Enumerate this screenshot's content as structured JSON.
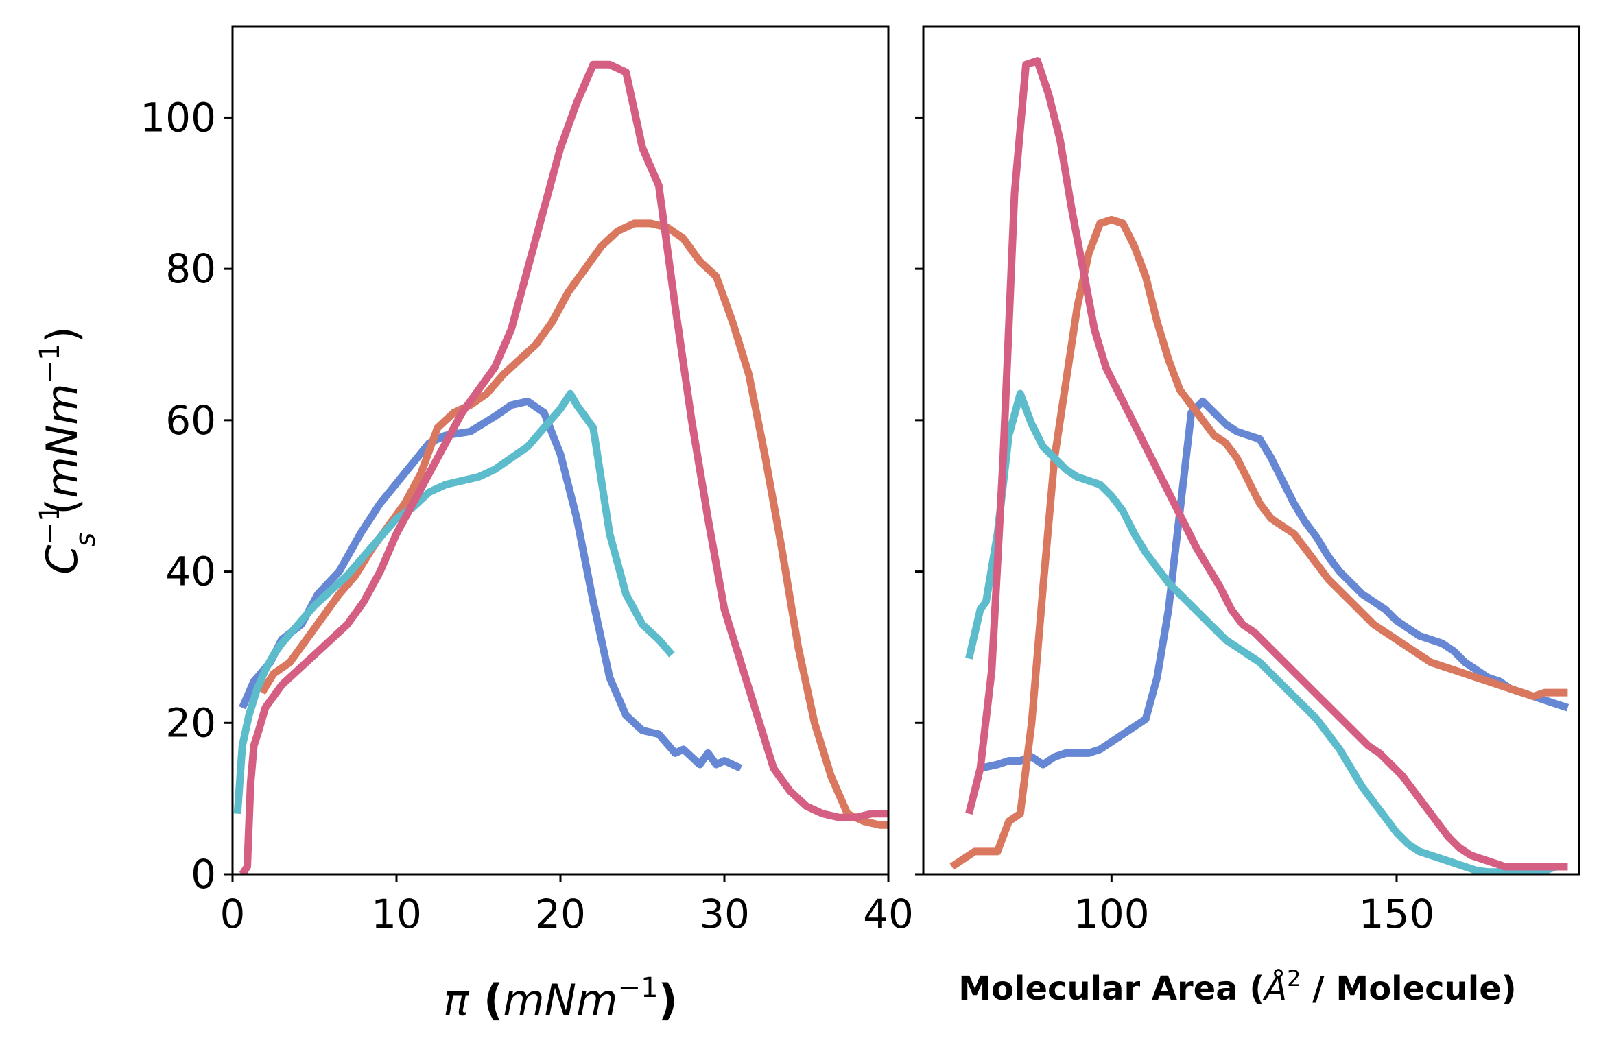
{
  "chart_data": [
    {
      "type": "line",
      "title": "",
      "xlabel": "π (mNm⁻¹)",
      "ylabel": "Cₛ⁻¹(mNm⁻¹)",
      "xlim": [
        0,
        40
      ],
      "ylim": [
        0,
        112
      ],
      "xticks": [
        0,
        10,
        20,
        30,
        40
      ],
      "yticks": [
        0,
        20,
        40,
        60,
        80,
        100
      ],
      "grid": false,
      "series": [
        {
          "color": "#6688d4",
          "x": [
            0.6,
            1.3,
            2.3,
            3.0,
            4.2,
            5.2,
            6.5,
            7.8,
            9.0,
            10.5,
            12.0,
            13.0,
            14.5,
            16.0,
            17.0,
            18.0,
            19.0,
            20.0,
            21.0,
            22.0,
            23.0,
            24.0,
            25.0,
            26.0,
            27.0,
            27.5,
            28.5,
            29.0,
            29.5,
            30.0,
            31.0
          ],
          "y": [
            22,
            25.5,
            28,
            31,
            33,
            37,
            40,
            45,
            49,
            53,
            57,
            58,
            58.5,
            60.5,
            62,
            62.5,
            61,
            55.5,
            47,
            36,
            26,
            21,
            19,
            18.5,
            16,
            16.5,
            14.5,
            16,
            14.5,
            15,
            14
          ]
        },
        {
          "color": "#d9785f",
          "x": [
            1.8,
            2.5,
            3.5,
            4.5,
            5.5,
            6.5,
            7.5,
            8.5,
            9.5,
            10.5,
            11.5,
            12.5,
            13.5,
            14.5,
            15.5,
            16.5,
            17.5,
            18.5,
            19.5,
            20.5,
            21.5,
            22.5,
            23.5,
            24.5,
            25.5,
            26.5,
            27.5,
            28.5,
            29.5,
            30.5,
            31.5,
            32.5,
            33.5,
            34.5,
            35.5,
            36.5,
            37.5,
            38.5,
            39.5,
            40.0
          ],
          "y": [
            24,
            26.5,
            28,
            31,
            34,
            37,
            39.5,
            43,
            46,
            49,
            53,
            59,
            61,
            62,
            63.5,
            66,
            68,
            70,
            73,
            77,
            80,
            83,
            85,
            86,
            86,
            85.5,
            84,
            81,
            79,
            73,
            66,
            55,
            43,
            30,
            20,
            13,
            8,
            7,
            6.5,
            6.5
          ]
        },
        {
          "color": "#5cbccc",
          "x": [
            0.3,
            0.6,
            1.0,
            1.5,
            2.0,
            2.5,
            3.0,
            4.0,
            5.0,
            6.0,
            7.0,
            8.0,
            9.0,
            10.0,
            11.0,
            12.0,
            13.0,
            14.0,
            15.0,
            16.0,
            17.0,
            18.0,
            19.0,
            20.0,
            20.6,
            21.0,
            22.0,
            23.0,
            24.0,
            25.0,
            26.0,
            26.8
          ],
          "y": [
            8,
            17,
            21,
            24.5,
            27,
            29,
            30.5,
            33,
            35.5,
            37.5,
            39.5,
            42,
            44.5,
            47,
            48.5,
            50.5,
            51.5,
            52,
            52.5,
            53.5,
            55,
            56.5,
            59,
            61.5,
            63.5,
            62,
            59,
            45,
            37,
            33,
            31,
            29
          ]
        },
        {
          "color": "#d45f82",
          "x": [
            0.6,
            0.9,
            1.1,
            1.3,
            1.6,
            2.0,
            3.0,
            4.0,
            5.0,
            6.0,
            7.0,
            8.0,
            9.0,
            10.0,
            11.0,
            12.0,
            13.0,
            14.0,
            15.0,
            16.0,
            17.0,
            18.0,
            19.0,
            20.0,
            21.0,
            22.0,
            23.0,
            24.0,
            25.0,
            26.0,
            27.0,
            28.0,
            29.0,
            30.0,
            31.0,
            32.0,
            33.0,
            34.0,
            35.0,
            36.0,
            37.0,
            38.0,
            39.0,
            40.0
          ],
          "y": [
            0,
            1,
            12,
            17,
            19,
            22,
            25,
            27,
            29,
            31,
            33,
            36,
            40,
            45,
            49,
            53,
            57,
            61,
            64,
            67,
            72,
            80,
            88,
            96,
            102,
            107,
            107,
            106,
            96,
            91,
            75,
            60,
            47,
            35,
            28,
            21,
            14,
            11,
            9,
            8,
            7.5,
            7.5,
            8,
            8
          ]
        }
      ]
    },
    {
      "type": "line",
      "title": "",
      "xlabel": "Molecular Area (Å² / Molecule)",
      "ylabel": "",
      "xlim": [
        67,
        182
      ],
      "ylim": [
        0,
        112
      ],
      "xticks": [
        100,
        150
      ],
      "yticks": [
        0,
        20,
        40,
        60,
        80,
        100
      ],
      "grid": false,
      "series": [
        {
          "color": "#6688d4",
          "x": [
            77,
            80,
            82,
            84,
            86,
            88,
            90,
            92,
            94,
            96,
            98,
            100,
            102,
            104,
            106,
            108,
            110,
            112,
            114,
            116,
            118,
            120,
            122,
            124,
            126,
            128,
            130,
            132,
            134,
            136,
            138,
            140,
            142,
            144,
            146,
            148,
            150,
            152,
            154,
            156,
            158,
            160,
            162,
            164,
            166,
            168,
            170,
            172,
            174,
            176,
            178,
            180
          ],
          "y": [
            14,
            14.5,
            15,
            15,
            15.5,
            14.5,
            15.5,
            16,
            16,
            16,
            16.5,
            17.5,
            18.5,
            19.5,
            20.5,
            26,
            35,
            48,
            61,
            62.5,
            61,
            59.5,
            58.5,
            58,
            57.5,
            55,
            52,
            49,
            46.5,
            44.5,
            42,
            40,
            38.5,
            37,
            36,
            35,
            33.5,
            32.5,
            31.5,
            31,
            30.5,
            29.5,
            28,
            27,
            26,
            25.5,
            24.5,
            24,
            23.5,
            23,
            22.5,
            22
          ]
        },
        {
          "color": "#d9785f",
          "x": [
            72,
            74,
            76,
            78,
            80,
            82,
            84,
            86,
            88,
            90,
            92,
            94,
            96,
            98,
            100,
            102,
            104,
            106,
            108,
            110,
            112,
            114,
            116,
            118,
            120,
            122,
            124,
            126,
            128,
            130,
            132,
            134,
            136,
            138,
            140,
            142,
            144,
            146,
            148,
            150,
            152,
            154,
            156,
            158,
            160,
            162,
            164,
            166,
            168,
            170,
            172,
            174,
            176,
            178,
            180
          ],
          "y": [
            1,
            2,
            3,
            3,
            3,
            7,
            8,
            20,
            38,
            55,
            65,
            75,
            82,
            86,
            86.5,
            86,
            83,
            79,
            73,
            68,
            64,
            62,
            60,
            58,
            57,
            55,
            52,
            49,
            47,
            46,
            45,
            43,
            41,
            39,
            37.5,
            36,
            34.5,
            33,
            32,
            31,
            30,
            29,
            28,
            27.5,
            27,
            26.5,
            26,
            25.5,
            25,
            24.5,
            24,
            23.5,
            24,
            24,
            24
          ]
        },
        {
          "color": "#5cbccc",
          "x": [
            75,
            77,
            78,
            80,
            82,
            84,
            86,
            88,
            90,
            92,
            94,
            96,
            98,
            100,
            102,
            104,
            106,
            108,
            110,
            112,
            114,
            116,
            118,
            120,
            122,
            124,
            126,
            128,
            130,
            132,
            134,
            136,
            138,
            140,
            142,
            144,
            146,
            148,
            150,
            152,
            154,
            156,
            158,
            160,
            162,
            164,
            166,
            168,
            170,
            172,
            174,
            176,
            178,
            180
          ],
          "y": [
            28.5,
            35,
            36,
            45,
            58,
            63.5,
            59.5,
            56.5,
            55,
            53.5,
            52.5,
            52,
            51.5,
            50,
            48,
            45,
            42.5,
            40.5,
            38.5,
            37,
            35.5,
            34,
            32.5,
            31,
            30,
            29,
            28,
            26.5,
            25,
            23.5,
            22,
            20.5,
            18.5,
            16.5,
            14,
            11.5,
            9.5,
            7.5,
            5.5,
            4,
            3,
            2.5,
            2,
            1.5,
            1,
            0.5,
            0.3,
            0.3,
            0.3,
            0.3,
            0.3,
            0.5,
            1,
            1
          ]
        },
        {
          "color": "#d45f82",
          "x": [
            75,
            77,
            79,
            81,
            83,
            85,
            87,
            89,
            91,
            93,
            95,
            97,
            99,
            101,
            103,
            105,
            107,
            109,
            111,
            113,
            115,
            117,
            119,
            121,
            123,
            125,
            127,
            129,
            131,
            133,
            135,
            137,
            139,
            141,
            143,
            145,
            147,
            149,
            151,
            153,
            155,
            157,
            159,
            161,
            163,
            165,
            167,
            169,
            171,
            173,
            175,
            177,
            179,
            180
          ],
          "y": [
            8,
            14,
            27,
            55,
            90,
            107,
            107.5,
            103,
            97,
            88,
            80,
            72,
            67,
            64,
            61,
            58,
            55,
            52,
            49,
            46,
            43,
            40.5,
            38,
            35,
            33,
            32,
            30.5,
            29,
            27.5,
            26,
            24.5,
            23,
            21.5,
            20,
            18.5,
            17,
            16,
            14.5,
            13,
            11,
            9,
            7,
            5,
            3.5,
            2.5,
            2,
            1.5,
            1,
            1,
            1,
            1,
            1,
            1,
            1
          ]
        }
      ]
    }
  ]
}
